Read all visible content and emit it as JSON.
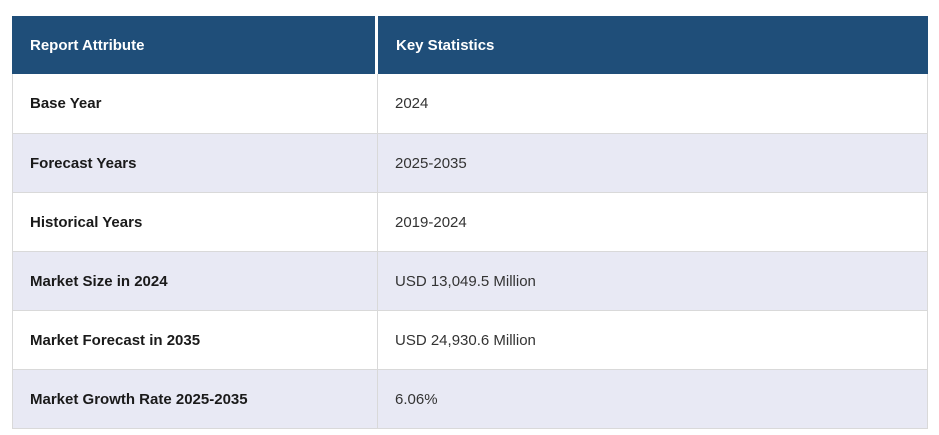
{
  "table": {
    "headers": [
      "Report Attribute",
      "Key Statistics"
    ],
    "rows": [
      {
        "attribute": "Base Year",
        "value": "2024"
      },
      {
        "attribute": "Forecast Years",
        "value": "2025-2035"
      },
      {
        "attribute": "Historical Years",
        "value": "2019-2024"
      },
      {
        "attribute": "Market Size in 2024",
        "value": "USD 13,049.5 Million"
      },
      {
        "attribute": "Market Forecast in 2035",
        "value": "USD 24,930.6 Million"
      },
      {
        "attribute": "Market Growth Rate 2025-2035",
        "value": "6.06%"
      }
    ],
    "colors": {
      "header_bg": "#1F4E79",
      "header_text": "#FFFFFF",
      "row_bg": "#FFFFFF",
      "row_alt_bg": "#E8E9F4",
      "border": "#D9D9D9",
      "attribute_text": "#1A1A1A",
      "value_text": "#333333"
    }
  },
  "chart_data": {
    "type": "table",
    "columns": [
      "Report Attribute",
      "Key Statistics"
    ],
    "rows": [
      [
        "Base Year",
        "2024"
      ],
      [
        "Forecast Years",
        "2025-2035"
      ],
      [
        "Historical Years",
        "2019-2024"
      ],
      [
        "Market Size in 2024",
        "USD 13,049.5 Million"
      ],
      [
        "Market Forecast in 2035",
        "USD 24,930.6 Million"
      ],
      [
        "Market Growth Rate 2025-2035",
        "6.06%"
      ]
    ],
    "layout": {
      "header_style": "dark-navy-bar",
      "row_striping": "alternating-white-lavender",
      "grid": "horizontal-borders-and-column-divider"
    }
  }
}
